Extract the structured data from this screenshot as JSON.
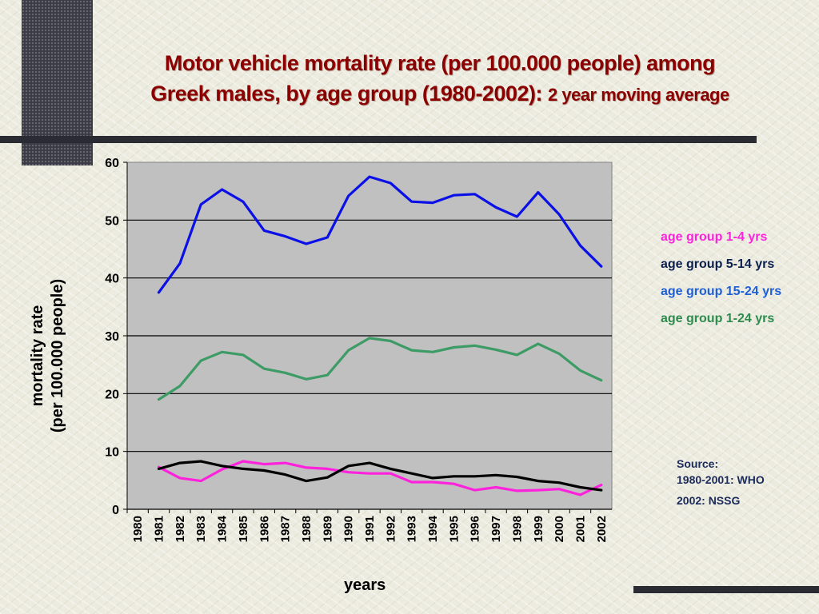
{
  "page": {
    "title_line1": "Motor vehicle mortality rate (per 100.000 people) among",
    "title_line2_main": "Greek males, by age group (1980-2002): ",
    "title_line2_sub": "2 year moving average",
    "source_heading": "Source:",
    "source_line1": "1980-2001: WHO",
    "source_line2": "2002: NSSG"
  },
  "colors": {
    "title": "#8b0000",
    "plot_background": "#c0c0c0",
    "grid": "#000000"
  },
  "chart_data": {
    "type": "line",
    "title": "Motor vehicle mortality rate (per 100.000 people) among Greek males, by age group (1980-2002): 2 year moving average",
    "xlabel": "years",
    "ylabel_line1": "mortality rate",
    "ylabel_line2": "(per 100.000 people)",
    "ylim": [
      0,
      60
    ],
    "yticks": [
      "0",
      "10",
      "20",
      "30",
      "40",
      "50",
      "60"
    ],
    "categories": [
      "1980",
      "1981",
      "1982",
      "1983",
      "1984",
      "1985",
      "1986",
      "1987",
      "1988",
      "1989",
      "1990",
      "1991",
      "1992",
      "1993",
      "1994",
      "1995",
      "1996",
      "1997",
      "1998",
      "1999",
      "2000",
      "2001",
      "2002"
    ],
    "grid": true,
    "legend_position": "right",
    "series": [
      {
        "name": "age group 1-4 yrs",
        "color": "#ff22dd",
        "values": [
          null,
          7.3,
          5.4,
          4.9,
          6.9,
          8.3,
          7.8,
          8.0,
          7.2,
          7.0,
          6.4,
          6.2,
          6.2,
          4.7,
          4.7,
          4.4,
          3.3,
          3.8,
          3.2,
          3.3,
          3.5,
          2.5,
          4.2
        ]
      },
      {
        "name": "age group 5-14 yrs",
        "color": "#000000",
        "legend_color": "#0b1f4e",
        "values": [
          null,
          7.0,
          8.0,
          8.3,
          7.5,
          7.0,
          6.7,
          6.0,
          4.9,
          5.5,
          7.5,
          8.0,
          7.0,
          6.2,
          5.4,
          5.7,
          5.7,
          5.9,
          5.6,
          4.9,
          4.6,
          3.8,
          3.3
        ]
      },
      {
        "name": "age group 15-24 yrs",
        "color": "#0a10e6",
        "legend_color": "#1f5fd6",
        "values": [
          null,
          37.5,
          42.5,
          52.7,
          55.3,
          53.2,
          48.2,
          47.2,
          45.9,
          47.0,
          54.2,
          57.5,
          56.4,
          53.2,
          53.0,
          54.3,
          54.5,
          52.2,
          50.6,
          54.8,
          51.0,
          45.6,
          42.0
        ]
      },
      {
        "name": "age group 1-24 yrs",
        "color": "#3d9b65",
        "legend_color": "#2e8b4e",
        "values": [
          null,
          19.0,
          21.3,
          25.7,
          27.2,
          26.7,
          24.3,
          23.6,
          22.5,
          23.2,
          27.5,
          29.6,
          29.1,
          27.5,
          27.2,
          28.0,
          28.3,
          27.6,
          26.7,
          28.6,
          26.9,
          24.0,
          22.3
        ]
      }
    ]
  }
}
